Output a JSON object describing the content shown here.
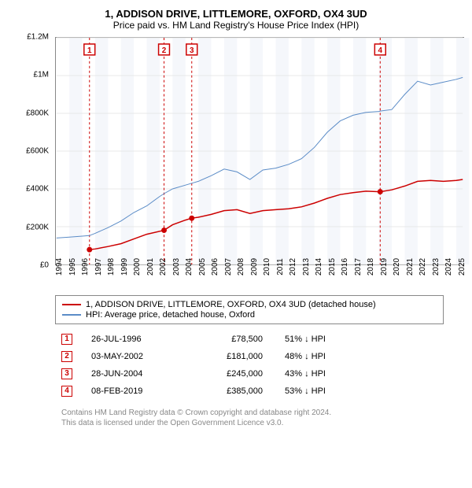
{
  "title": {
    "line1": "1, ADDISON DRIVE, LITTLEMORE, OXFORD, OX4 3UD",
    "line2": "Price paid vs. HM Land Registry's House Price Index (HPI)"
  },
  "chart": {
    "type": "line",
    "background_color": "#ffffff",
    "plot_border_color": "#888888",
    "grid_color": "#e8e8e8",
    "band_color": "#f5f7fb",
    "xlim": [
      1994,
      2025.5
    ],
    "ylim": [
      0,
      1200000
    ],
    "y_ticks": [
      {
        "v": 0,
        "label": "£0"
      },
      {
        "v": 200000,
        "label": "£200K"
      },
      {
        "v": 400000,
        "label": "£400K"
      },
      {
        "v": 600000,
        "label": "£600K"
      },
      {
        "v": 800000,
        "label": "£800K"
      },
      {
        "v": 1000000,
        "label": "£1M"
      },
      {
        "v": 1200000,
        "label": "£1.2M"
      }
    ],
    "x_ticks": [
      1994,
      1995,
      1996,
      1997,
      1998,
      1999,
      2000,
      2001,
      2002,
      2003,
      2004,
      2005,
      2006,
      2007,
      2008,
      2009,
      2010,
      2011,
      2012,
      2013,
      2014,
      2015,
      2016,
      2017,
      2018,
      2019,
      2020,
      2021,
      2022,
      2023,
      2024,
      2025
    ],
    "alternating_bands_start": 1995,
    "series": [
      {
        "name": "price_paid",
        "label": "1, ADDISON DRIVE, LITTLEMORE, OXFORD, OX4 3UD (detached house)",
        "color": "#cc0000",
        "line_width": 1.5,
        "data": [
          [
            1996.56,
            78500
          ],
          [
            1997.0,
            82000
          ],
          [
            1998.0,
            95000
          ],
          [
            1999.0,
            110000
          ],
          [
            2000.0,
            135000
          ],
          [
            2001.0,
            160000
          ],
          [
            2002.34,
            181000
          ],
          [
            2003.0,
            210000
          ],
          [
            2004.0,
            235000
          ],
          [
            2004.49,
            245000
          ],
          [
            2005.0,
            250000
          ],
          [
            2006.0,
            265000
          ],
          [
            2007.0,
            285000
          ],
          [
            2008.0,
            290000
          ],
          [
            2009.0,
            270000
          ],
          [
            2010.0,
            285000
          ],
          [
            2011.0,
            290000
          ],
          [
            2012.0,
            295000
          ],
          [
            2013.0,
            305000
          ],
          [
            2014.0,
            325000
          ],
          [
            2015.0,
            350000
          ],
          [
            2016.0,
            370000
          ],
          [
            2017.0,
            380000
          ],
          [
            2018.0,
            388000
          ],
          [
            2019.1,
            385000
          ],
          [
            2020.0,
            395000
          ],
          [
            2021.0,
            415000
          ],
          [
            2022.0,
            440000
          ],
          [
            2023.0,
            445000
          ],
          [
            2024.0,
            440000
          ],
          [
            2025.0,
            445000
          ],
          [
            2025.5,
            450000
          ]
        ]
      },
      {
        "name": "hpi",
        "label": "HPI: Average price, detached house, Oxford",
        "color": "#5b8cc7",
        "line_width": 1,
        "data": [
          [
            1994.0,
            140000
          ],
          [
            1995.0,
            145000
          ],
          [
            1996.0,
            150000
          ],
          [
            1996.56,
            153000
          ],
          [
            1997.0,
            165000
          ],
          [
            1998.0,
            195000
          ],
          [
            1999.0,
            230000
          ],
          [
            2000.0,
            275000
          ],
          [
            2001.0,
            310000
          ],
          [
            2002.0,
            360000
          ],
          [
            2002.34,
            375000
          ],
          [
            2003.0,
            400000
          ],
          [
            2004.0,
            420000
          ],
          [
            2004.49,
            430000
          ],
          [
            2005.0,
            440000
          ],
          [
            2006.0,
            470000
          ],
          [
            2007.0,
            505000
          ],
          [
            2008.0,
            490000
          ],
          [
            2009.0,
            450000
          ],
          [
            2010.0,
            500000
          ],
          [
            2011.0,
            510000
          ],
          [
            2012.0,
            530000
          ],
          [
            2013.0,
            560000
          ],
          [
            2014.0,
            620000
          ],
          [
            2015.0,
            700000
          ],
          [
            2016.0,
            760000
          ],
          [
            2017.0,
            790000
          ],
          [
            2018.0,
            805000
          ],
          [
            2019.0,
            810000
          ],
          [
            2019.1,
            812000
          ],
          [
            2020.0,
            820000
          ],
          [
            2021.0,
            900000
          ],
          [
            2022.0,
            970000
          ],
          [
            2023.0,
            950000
          ],
          [
            2024.0,
            965000
          ],
          [
            2025.0,
            980000
          ],
          [
            2025.5,
            990000
          ]
        ]
      }
    ],
    "sale_markers": [
      {
        "n": "1",
        "x": 1996.56,
        "date": "26-JUL-1996",
        "price": "£78,500",
        "diff": "51% ↓ HPI"
      },
      {
        "n": "2",
        "x": 2002.34,
        "date": "03-MAY-2002",
        "price": "£181,000",
        "diff": "48% ↓ HPI"
      },
      {
        "n": "3",
        "x": 2004.49,
        "date": "28-JUN-2004",
        "price": "£245,000",
        "diff": "43% ↓ HPI"
      },
      {
        "n": "4",
        "x": 2019.1,
        "date": "08-FEB-2019",
        "price": "£385,000",
        "diff": "53% ↓ HPI"
      }
    ],
    "marker_line_color": "#cc0000",
    "marker_line_dash": "3,3",
    "sale_dot_color": "#cc0000",
    "sale_dot_radius": 3.5
  },
  "legend": {
    "items": [
      {
        "color": "#cc0000",
        "label": "1, ADDISON DRIVE, LITTLEMORE, OXFORD, OX4 3UD (detached house)"
      },
      {
        "color": "#5b8cc7",
        "label": "HPI: Average price, detached house, Oxford"
      }
    ]
  },
  "attribution": {
    "line1": "Contains HM Land Registry data © Crown copyright and database right 2024.",
    "line2": "This data is licensed under the Open Government Licence v3.0."
  }
}
